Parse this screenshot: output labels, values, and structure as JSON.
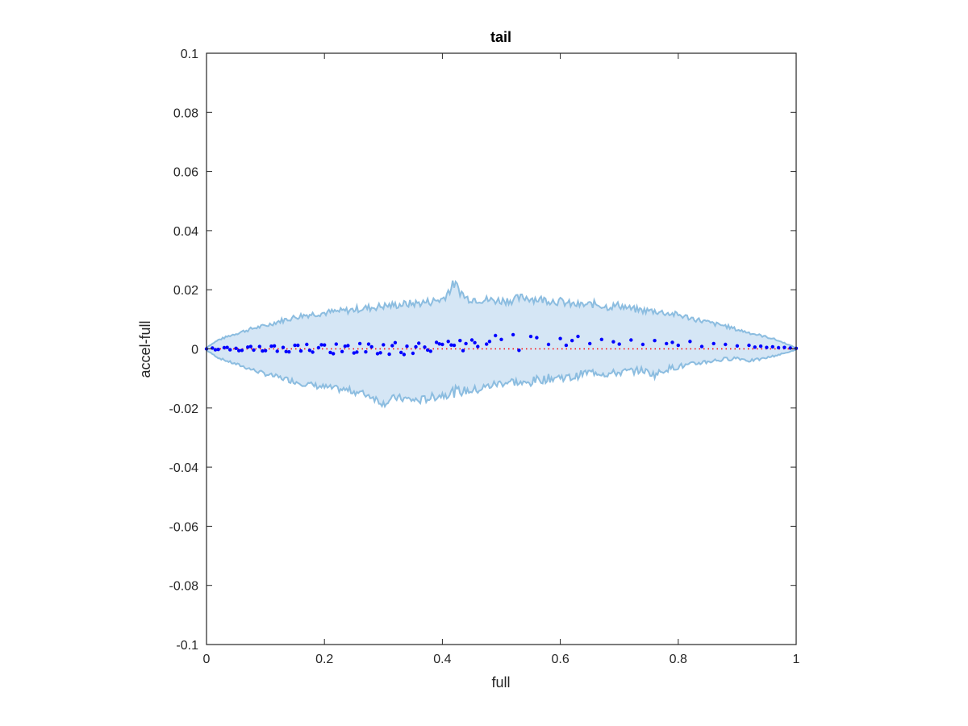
{
  "colors": {
    "band_fill": "#d5e6f5",
    "band_edge": "#8cbde0",
    "points": "#0000ff",
    "reference_line": "#ff0000",
    "axes": "#262626"
  },
  "chart_data": {
    "type": "scatter",
    "title": "tail",
    "xlabel": "full",
    "ylabel": "accel-full",
    "xlim": [
      0,
      1
    ],
    "ylim": [
      -0.1,
      0.1
    ],
    "grid": false,
    "x_ticks": [
      0,
      0.2,
      0.4,
      0.6,
      0.8,
      1
    ],
    "x_tick_labels": [
      "0",
      "0.2",
      "0.4",
      "0.6",
      "0.8",
      "1"
    ],
    "y_ticks": [
      -0.1,
      -0.08,
      -0.06,
      -0.04,
      -0.02,
      0,
      0.02,
      0.04,
      0.06,
      0.08,
      0.1
    ],
    "y_tick_labels": [
      "-0.1",
      "-0.08",
      "-0.06",
      "-0.04",
      "-0.02",
      "0",
      "0.02",
      "0.04",
      "0.06",
      "0.08",
      "0.1"
    ],
    "reference_line": {
      "y": 0,
      "style": "dotted"
    },
    "band": {
      "x": [
        0,
        0.02,
        0.04,
        0.06,
        0.08,
        0.1,
        0.12,
        0.14,
        0.16,
        0.18,
        0.2,
        0.22,
        0.24,
        0.26,
        0.28,
        0.3,
        0.32,
        0.34,
        0.36,
        0.38,
        0.4,
        0.42,
        0.44,
        0.46,
        0.48,
        0.5,
        0.52,
        0.54,
        0.56,
        0.58,
        0.6,
        0.62,
        0.64,
        0.66,
        0.68,
        0.7,
        0.72,
        0.74,
        0.76,
        0.78,
        0.8,
        0.82,
        0.84,
        0.86,
        0.88,
        0.9,
        0.92,
        0.94,
        0.96,
        0.98,
        1.0
      ],
      "upper": [
        0.0005,
        0.003,
        0.0045,
        0.0058,
        0.007,
        0.0078,
        0.0092,
        0.0102,
        0.0112,
        0.0118,
        0.0122,
        0.0126,
        0.013,
        0.0136,
        0.014,
        0.0145,
        0.0148,
        0.0152,
        0.0155,
        0.016,
        0.0168,
        0.022,
        0.0172,
        0.0168,
        0.0165,
        0.0163,
        0.0166,
        0.0175,
        0.0168,
        0.0165,
        0.016,
        0.015,
        0.0148,
        0.0152,
        0.0142,
        0.0148,
        0.0135,
        0.013,
        0.0128,
        0.0121,
        0.0115,
        0.0105,
        0.0095,
        0.0085,
        0.0078,
        0.0065,
        0.0055,
        0.0045,
        0.0035,
        0.002,
        0.0003
      ],
      "lower": [
        -0.0005,
        -0.003,
        -0.0045,
        -0.0058,
        -0.0072,
        -0.0085,
        -0.0095,
        -0.0105,
        -0.0115,
        -0.0123,
        -0.013,
        -0.0135,
        -0.014,
        -0.0148,
        -0.016,
        -0.0185,
        -0.0165,
        -0.017,
        -0.0175,
        -0.0165,
        -0.0155,
        -0.0145,
        -0.0142,
        -0.0138,
        -0.0125,
        -0.0115,
        -0.011,
        -0.012,
        -0.0105,
        -0.01,
        -0.0095,
        -0.0098,
        -0.0082,
        -0.0078,
        -0.0085,
        -0.008,
        -0.0075,
        -0.0072,
        -0.0088,
        -0.0068,
        -0.006,
        -0.0055,
        -0.0045,
        -0.004,
        -0.0035,
        -0.003,
        -0.004,
        -0.0035,
        -0.0025,
        -0.0015,
        -0.0003
      ]
    },
    "series": [
      {
        "x": [
          0.0,
          0.01,
          0.02,
          0.03,
          0.04,
          0.05,
          0.06,
          0.07,
          0.08,
          0.09,
          0.1,
          0.11,
          0.12,
          0.13,
          0.14,
          0.15,
          0.16,
          0.17,
          0.18,
          0.19,
          0.2,
          0.21,
          0.22,
          0.23,
          0.24,
          0.25,
          0.26,
          0.27,
          0.28,
          0.29,
          0.3,
          0.31,
          0.32,
          0.33,
          0.34,
          0.35,
          0.36,
          0.37,
          0.38,
          0.39,
          0.4,
          0.41,
          0.42,
          0.43,
          0.44,
          0.45,
          0.46,
          0.48,
          0.49,
          0.5,
          0.52,
          0.53,
          0.55,
          0.56,
          0.58,
          0.6,
          0.61,
          0.62,
          0.63,
          0.65,
          0.67,
          0.69,
          0.7,
          0.72,
          0.74,
          0.76,
          0.78,
          0.79,
          0.8,
          0.82,
          0.84,
          0.86,
          0.88,
          0.9,
          0.92,
          0.93,
          0.94,
          0.95,
          0.96,
          0.97,
          0.98,
          0.99,
          1.0,
          0.015,
          0.035,
          0.055,
          0.075,
          0.095,
          0.115,
          0.135,
          0.155,
          0.175,
          0.195,
          0.215,
          0.235,
          0.255,
          0.275,
          0.295,
          0.315,
          0.335,
          0.355,
          0.375,
          0.395,
          0.415,
          0.435,
          0.455,
          0.475
        ],
        "y": [
          0.0,
          0.0003,
          -0.0002,
          0.0004,
          -0.0003,
          0.0002,
          -0.0005,
          0.0006,
          -0.0004,
          0.0008,
          -0.0006,
          0.0009,
          -0.0008,
          0.0005,
          -0.001,
          0.0012,
          -0.0007,
          0.0015,
          -0.0011,
          0.0004,
          0.0013,
          -0.0012,
          0.0016,
          -0.0009,
          0.0011,
          -0.0014,
          0.0018,
          -0.001,
          0.0007,
          -0.0016,
          0.0014,
          -0.0018,
          0.0021,
          -0.0012,
          0.0009,
          -0.0015,
          0.0019,
          0.0006,
          -0.0008,
          0.0022,
          0.0015,
          0.0025,
          0.0012,
          0.0028,
          0.0018,
          0.003,
          0.0008,
          0.0025,
          0.0045,
          0.0032,
          0.0048,
          -0.0005,
          0.0042,
          0.0038,
          0.0015,
          0.0035,
          0.0012,
          0.0028,
          0.0042,
          0.0018,
          0.0032,
          0.0024,
          0.0016,
          0.003,
          0.0015,
          0.0028,
          0.0018,
          0.0022,
          0.0012,
          0.0025,
          0.0008,
          0.0018,
          0.0015,
          0.001,
          0.0012,
          0.0006,
          0.0009,
          0.0005,
          0.0007,
          0.0004,
          0.0005,
          0.0003,
          0.0002,
          -0.0003,
          0.0005,
          -0.0006,
          0.0008,
          -0.0007,
          0.001,
          -0.0009,
          0.0012,
          -0.0005,
          0.0014,
          -0.0016,
          0.0009,
          -0.0011,
          0.0016,
          -0.0013,
          0.0011,
          -0.0019,
          0.0007,
          -0.0004,
          0.0017,
          0.0013,
          -0.0006,
          0.0021,
          0.0016
        ]
      }
    ]
  }
}
